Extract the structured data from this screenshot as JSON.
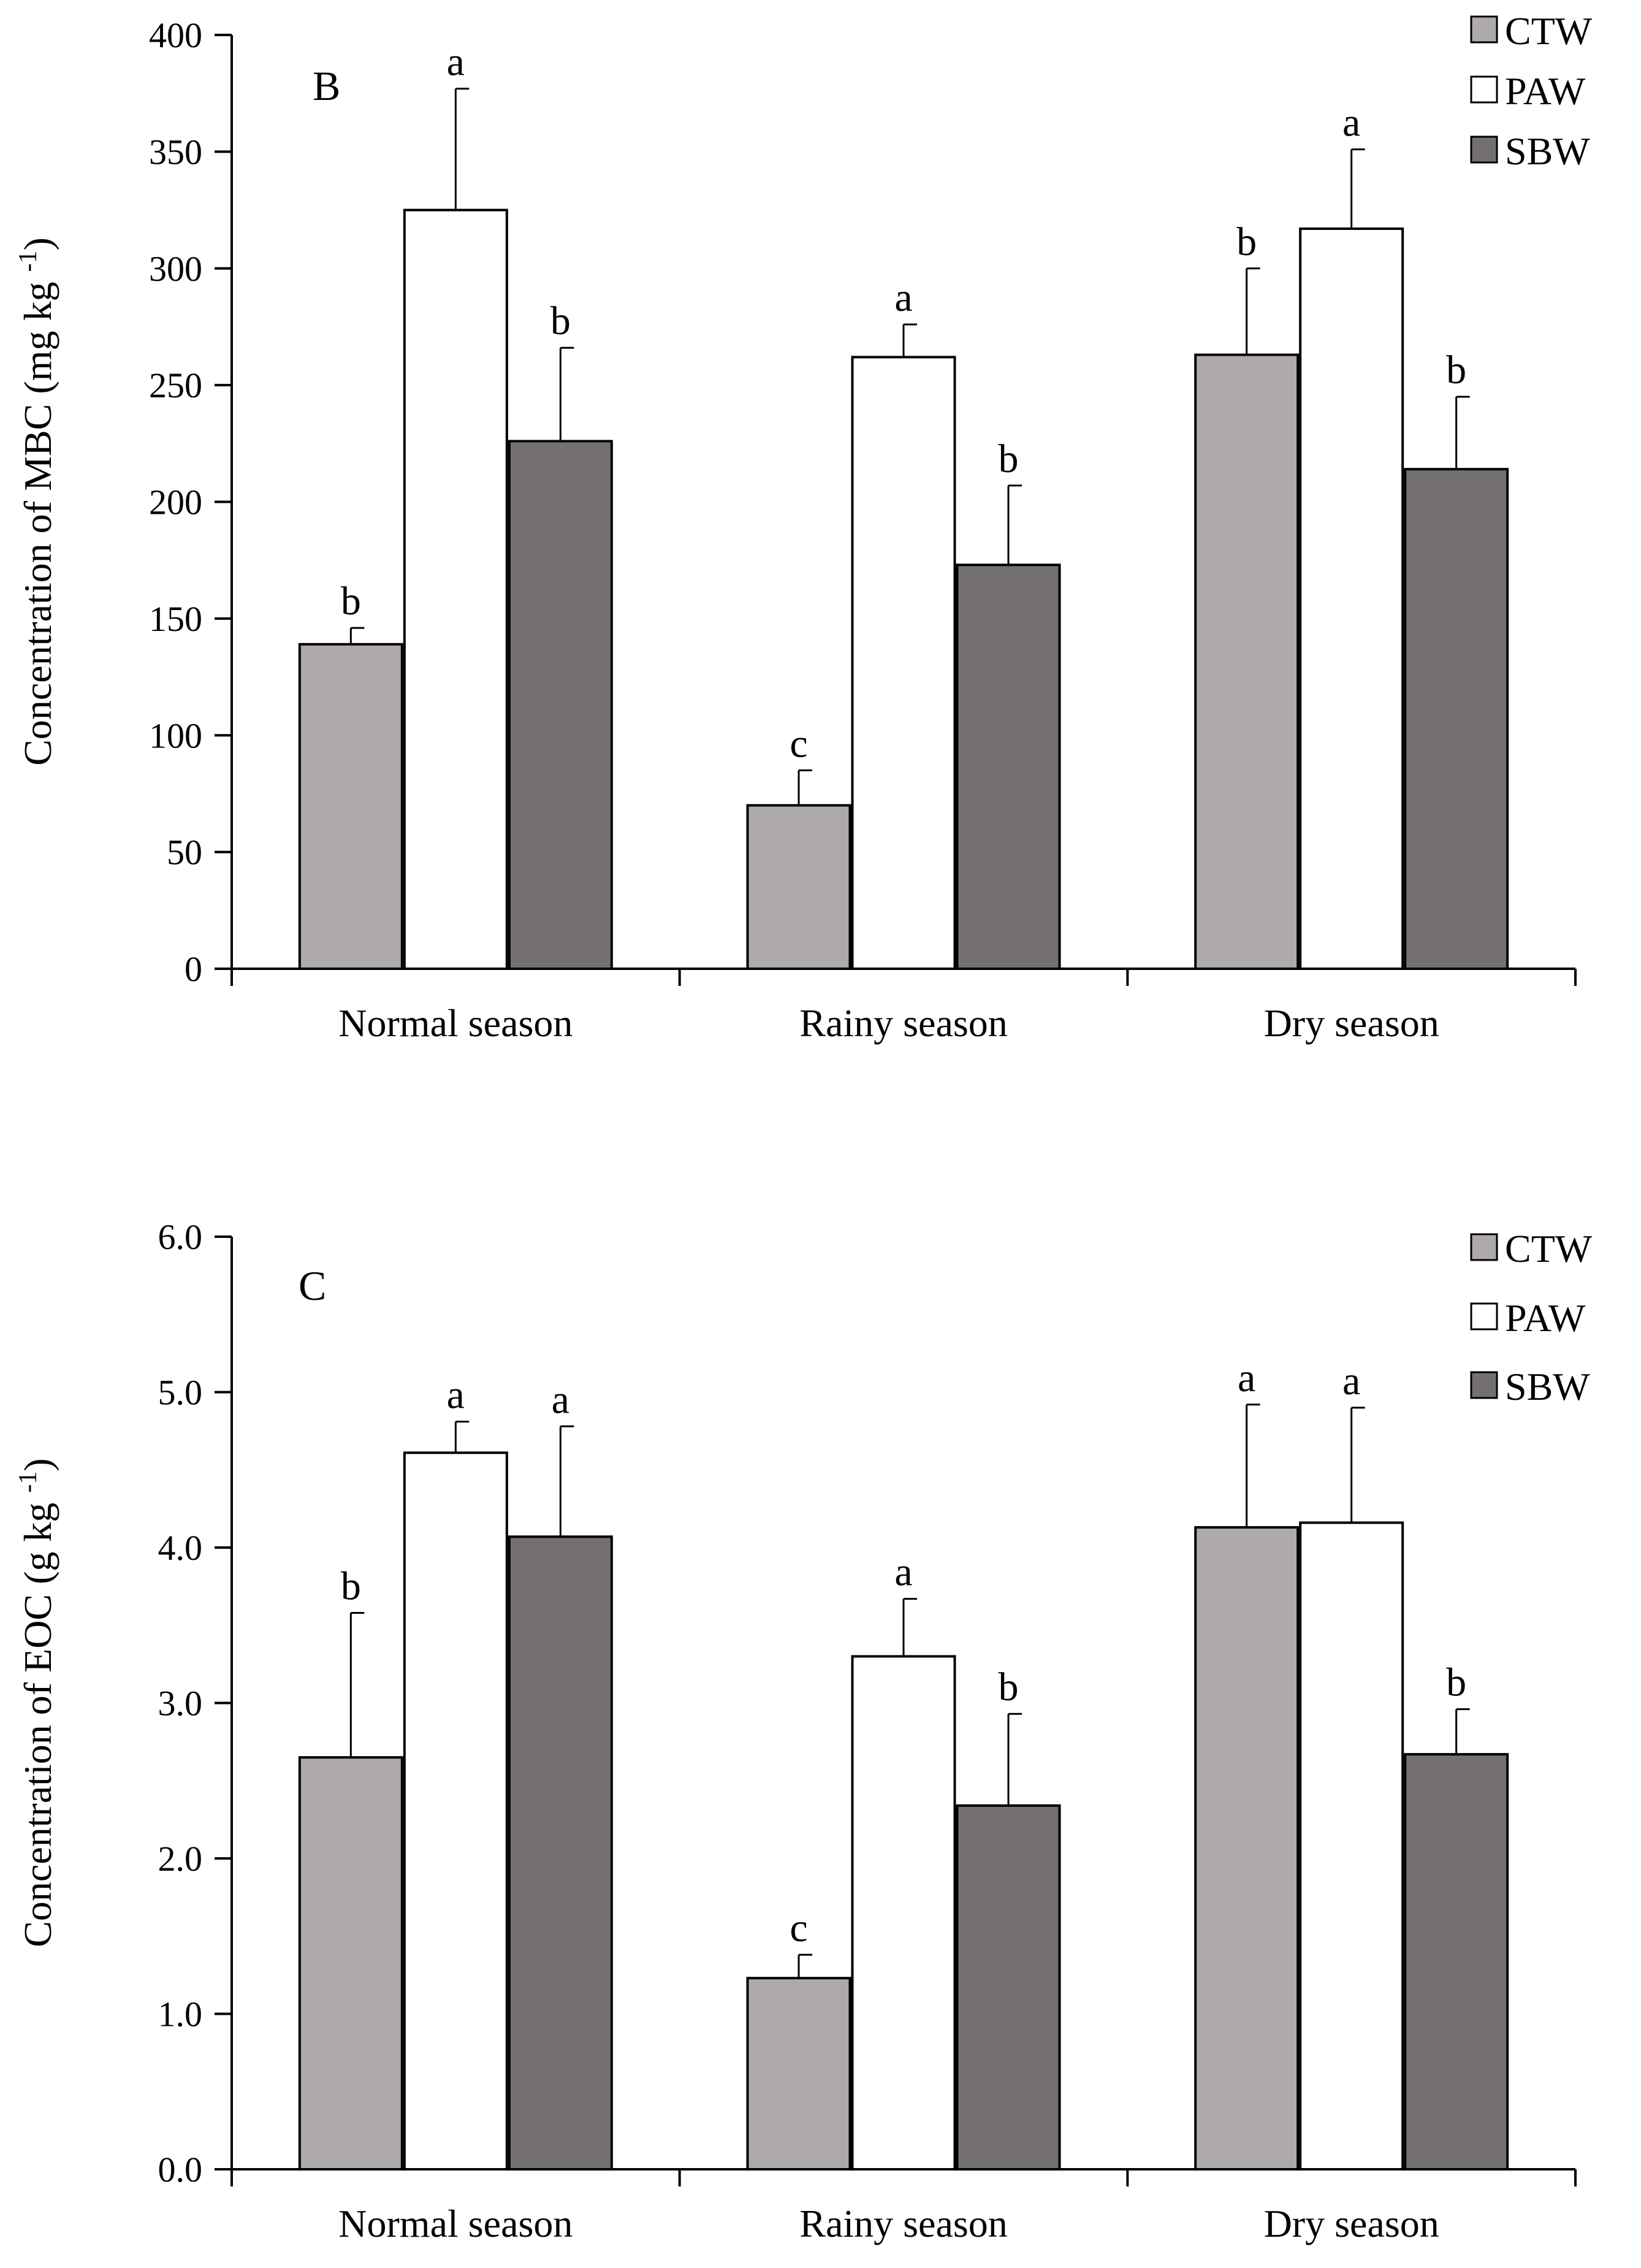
{
  "legend_labels": [
    "CTW",
    "PAW",
    "SBW"
  ],
  "colors": {
    "CTW": "#aeaaa9",
    "PAW": "#ffffff",
    "SBW": "#757070",
    "axis": "#000000"
  },
  "chart_data": [
    {
      "type": "bar",
      "panel_label": "B",
      "ylabel": "Concentration of MBC (mg kg⁻¹)",
      "categories": [
        "Normal season",
        "Rainy season",
        "Dry season"
      ],
      "ylim": [
        0,
        400
      ],
      "yticks": [
        "0",
        "50",
        "100",
        "150",
        "200",
        "250",
        "300",
        "350",
        "400"
      ],
      "series": [
        {
          "name": "CTW",
          "values": [
            139,
            70,
            263
          ],
          "errors": [
            7,
            15,
            37
          ],
          "letters": [
            "b",
            "c",
            "b"
          ]
        },
        {
          "name": "PAW",
          "values": [
            325,
            262,
            317
          ],
          "errors": [
            52,
            14,
            34
          ],
          "letters": [
            "a",
            "a",
            "a"
          ]
        },
        {
          "name": "SBW",
          "values": [
            226,
            173,
            214
          ],
          "errors": [
            40,
            34,
            31
          ],
          "letters": [
            "b",
            "b",
            "b"
          ]
        }
      ]
    },
    {
      "type": "bar",
      "panel_label": "C",
      "ylabel": "Concentration of EOC (g kg⁻¹)",
      "categories": [
        "Normal season",
        "Rainy season",
        "Dry season"
      ],
      "ylim": [
        0,
        6
      ],
      "yticks": [
        "0.0",
        "1.0",
        "2.0",
        "3.0",
        "4.0",
        "5.0",
        "6.0"
      ],
      "series": [
        {
          "name": "CTW",
          "values": [
            2.65,
            1.23,
            4.13
          ],
          "errors": [
            0.93,
            0.15,
            0.79
          ],
          "letters": [
            "b",
            "c",
            "a"
          ]
        },
        {
          "name": "PAW",
          "values": [
            4.61,
            3.3,
            4.16
          ],
          "errors": [
            0.2,
            0.37,
            0.74
          ],
          "letters": [
            "a",
            "a",
            "a"
          ]
        },
        {
          "name": "SBW",
          "values": [
            4.07,
            2.34,
            2.67
          ],
          "errors": [
            0.71,
            0.59,
            0.29
          ],
          "letters": [
            "a",
            "b",
            "b"
          ]
        }
      ]
    }
  ]
}
